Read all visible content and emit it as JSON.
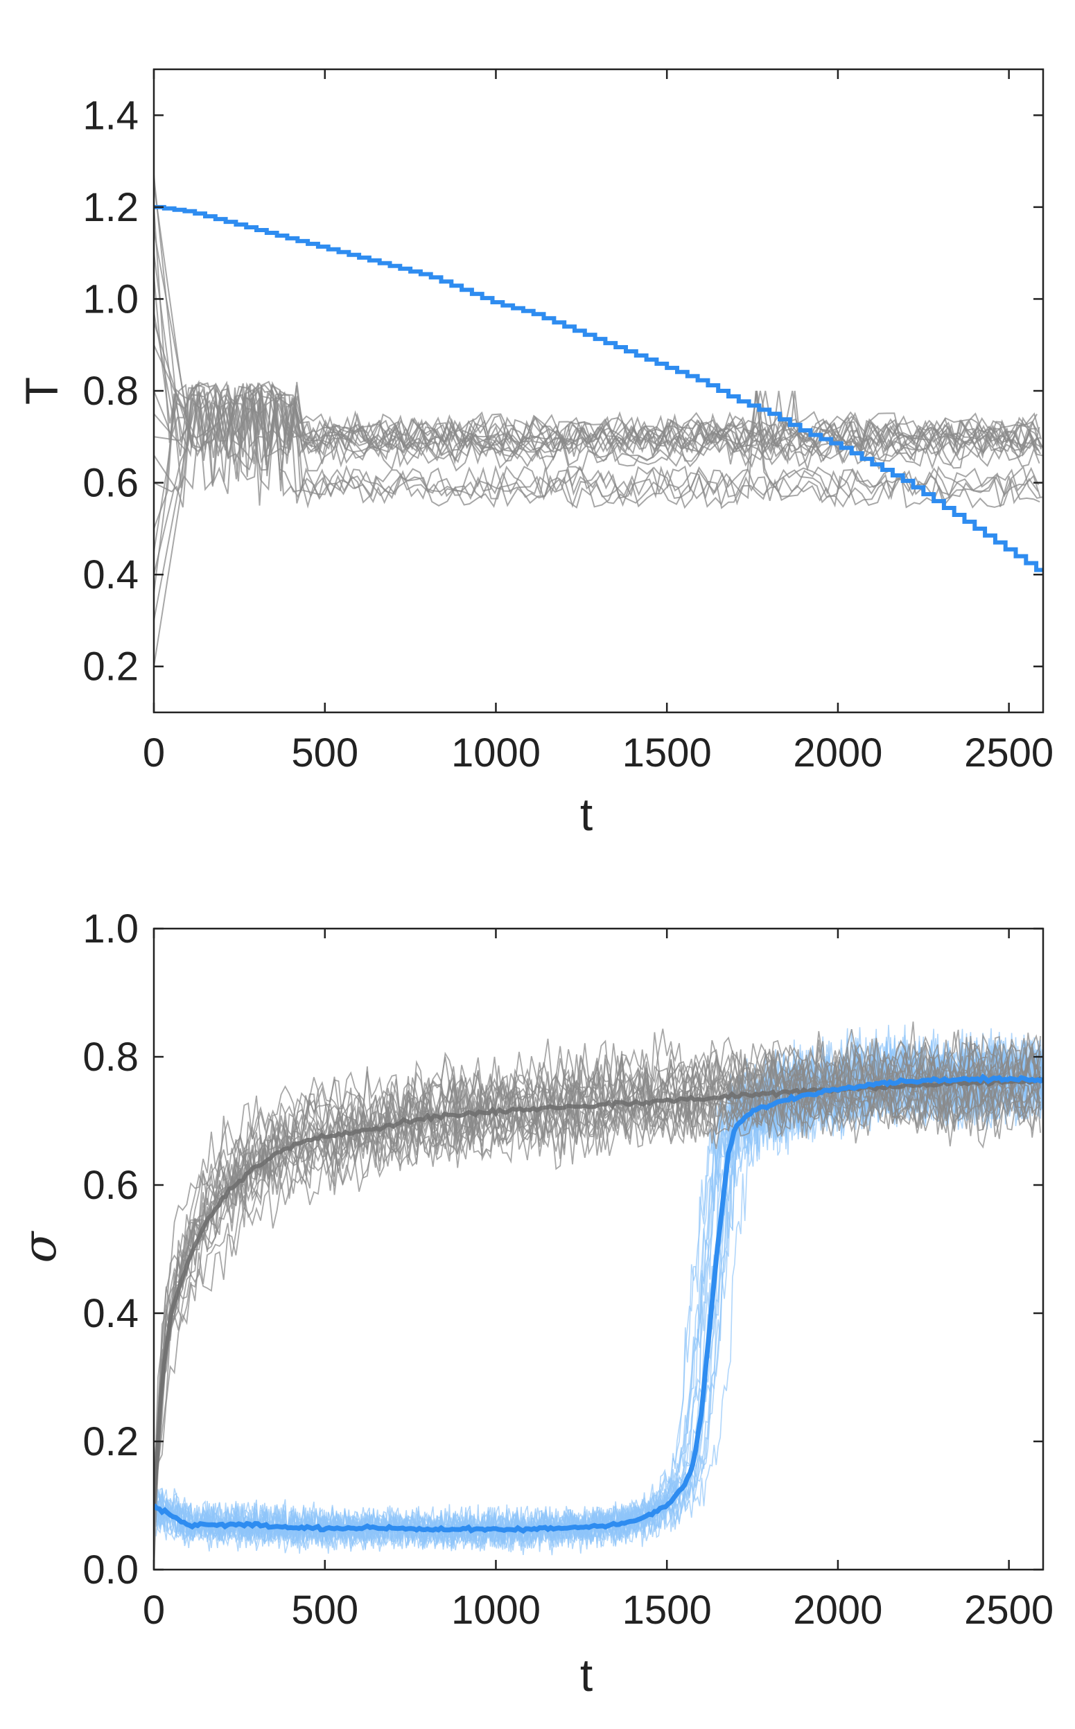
{
  "colors": {
    "highlight": "#2e8cf0",
    "highlight_light": "#8ec5fa",
    "gray_runs": "#8a8a8a",
    "gray_mean": "#6f6f6f",
    "axes": "#222222"
  },
  "chart_data": [
    {
      "type": "line",
      "panel": "top",
      "xlabel": "t",
      "ylabel": "T",
      "xlim": [
        0,
        2600
      ],
      "ylim": [
        0.1,
        1.5
      ],
      "xticks": [
        "0",
        "500",
        "1000",
        "1500",
        "2000",
        "2500"
      ],
      "yticks": [
        "0.2",
        "0.4",
        "0.6",
        "0.8",
        "1.0",
        "1.2",
        "1.4"
      ],
      "grid": false,
      "series": [
        {
          "style": "highlight",
          "description_of_shape": "stepwise decreasing schedule",
          "x": [
            0,
            100,
            200,
            300,
            400,
            500,
            600,
            700,
            800,
            900,
            1000,
            1100,
            1200,
            1300,
            1400,
            1500,
            1600,
            1700,
            1800,
            1900,
            2000,
            2100,
            2200,
            2300,
            2400,
            2500,
            2600
          ],
          "y": [
            1.2,
            1.19,
            1.17,
            1.15,
            1.13,
            1.11,
            1.09,
            1.07,
            1.05,
            1.02,
            0.99,
            0.97,
            0.94,
            0.91,
            0.88,
            0.85,
            0.82,
            0.78,
            0.75,
            0.71,
            0.68,
            0.64,
            0.6,
            0.55,
            0.5,
            0.45,
            0.4
          ]
        }
      ],
      "gray_runs": {
        "count": 20,
        "start_values": [
          0.2,
          0.3,
          0.36,
          0.4,
          0.45,
          0.5,
          0.6,
          0.7,
          0.8,
          0.9,
          0.97,
          1.05,
          1.1,
          1.15,
          1.2,
          1.25,
          1.27,
          0.66,
          0.75,
          0.95
        ],
        "plateau_levels": [
          0.7,
          0.72,
          0.68,
          0.66,
          0.7,
          0.6,
          0.58,
          0.69,
          0.71,
          0.67,
          0.7,
          0.72,
          0.6,
          0.7,
          0.68,
          0.69,
          0.71,
          0.58,
          0.66,
          0.7
        ],
        "drop_times": [
          null,
          null,
          null,
          330,
          null,
          650,
          900,
          null,
          null,
          null,
          null,
          null,
          1600,
          null,
          null,
          null,
          null,
          2000,
          null,
          null
        ],
        "peak_band": [
          0.76,
          0.82
        ],
        "peak_window": [
          0,
          420
        ]
      }
    },
    {
      "type": "line",
      "panel": "bottom",
      "xlabel": "t",
      "ylabel": "σ",
      "xlim": [
        0,
        2600
      ],
      "ylim": [
        0.0,
        1.0
      ],
      "xticks": [
        "0",
        "500",
        "1000",
        "1500",
        "2000",
        "2500"
      ],
      "yticks": [
        "0.0",
        "0.2",
        "0.4",
        "0.6",
        "0.8",
        "1.0"
      ],
      "grid": false,
      "series": [
        {
          "style": "highlight-mean",
          "x": [
            0,
            100,
            200,
            300,
            400,
            500,
            600,
            700,
            800,
            900,
            1000,
            1100,
            1200,
            1300,
            1400,
            1450,
            1500,
            1550,
            1580,
            1600,
            1620,
            1640,
            1660,
            1680,
            1700,
            1750,
            1800,
            1900,
            2000,
            2100,
            2200,
            2300,
            2400,
            2500,
            2600
          ],
          "y": [
            0.1,
            0.07,
            0.07,
            0.07,
            0.065,
            0.065,
            0.065,
            0.065,
            0.063,
            0.063,
            0.062,
            0.063,
            0.065,
            0.068,
            0.075,
            0.085,
            0.1,
            0.13,
            0.17,
            0.24,
            0.35,
            0.46,
            0.56,
            0.65,
            0.69,
            0.715,
            0.725,
            0.74,
            0.75,
            0.758,
            0.762,
            0.764,
            0.765,
            0.765,
            0.765
          ]
        },
        {
          "style": "gray-mean",
          "x": [
            0,
            25,
            50,
            100,
            150,
            200,
            300,
            400,
            500,
            600,
            700,
            800,
            900,
            1000,
            1200,
            1400,
            1600,
            1800,
            2000,
            2200,
            2400,
            2600
          ],
          "y": [
            0.1,
            0.3,
            0.4,
            0.48,
            0.54,
            0.58,
            0.63,
            0.66,
            0.675,
            0.685,
            0.695,
            0.705,
            0.71,
            0.715,
            0.722,
            0.728,
            0.735,
            0.743,
            0.75,
            0.755,
            0.76,
            0.762
          ]
        }
      ],
      "individual_runs": {
        "gray_count": 20,
        "gray_band_half_width": 0.09,
        "blue_count": 20,
        "blue_band_half_width_before": 0.045,
        "blue_band_half_width_after": 0.1
      }
    }
  ]
}
